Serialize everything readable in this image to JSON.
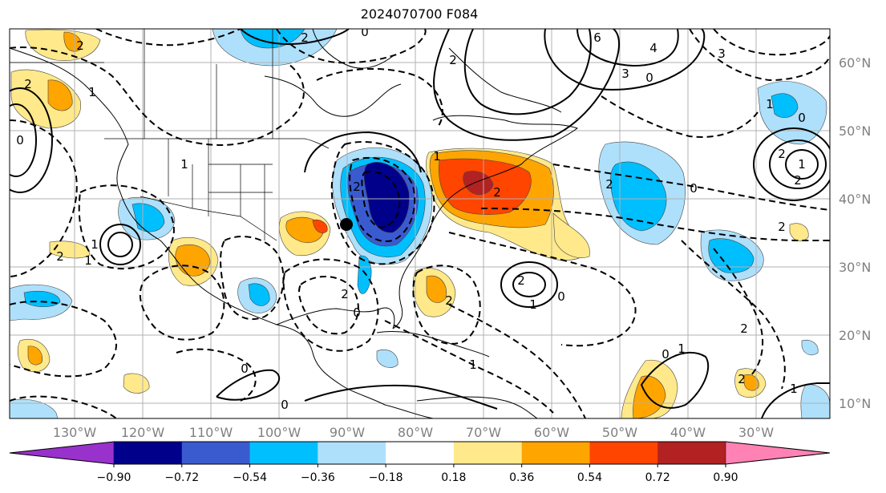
{
  "title": "2024070700 F084",
  "lat_labels": [
    "60°N",
    "50°N",
    "40°N",
    "30°N",
    "20°N",
    "10°N"
  ],
  "lon_labels": [
    "130°W",
    "120°W",
    "110°W",
    "100°W",
    "90°W",
    "80°W",
    "70°W",
    "60°W",
    "50°W",
    "40°W",
    "30°W"
  ],
  "colorbar": {
    "colors": [
      "#9932cc",
      "#00008b",
      "#3a5bd0",
      "#00bfff",
      "#aee0fb",
      "#ffffff",
      "#ffe98a",
      "#ffa500",
      "#ff4500",
      "#b22222",
      "#ff82b4"
    ],
    "tick_labels": [
      "−0.90",
      "−0.72",
      "−0.54",
      "−0.36",
      "−0.18",
      "0.18",
      "0.36",
      "0.54",
      "0.72",
      "0.90"
    ]
  },
  "contour_labels": [
    "2",
    "2",
    "0",
    "6",
    "2",
    "3",
    "4",
    "3",
    "0",
    "1",
    "0",
    "2",
    "1",
    "2",
    "0",
    "2",
    "2",
    "2",
    "2",
    "1",
    "0",
    "2",
    "1",
    "0",
    "1",
    "1",
    "0",
    "0",
    "2",
    "1",
    "2",
    "0",
    "2",
    "2",
    "1",
    "1",
    "0",
    "2",
    "1",
    "2",
    "1"
  ],
  "marker": "storm-center"
}
